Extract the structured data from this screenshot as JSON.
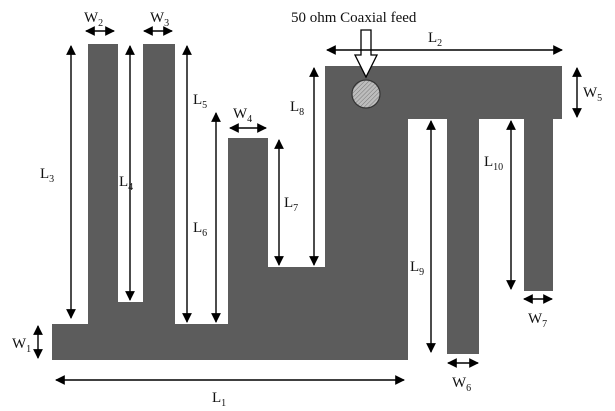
{
  "diagram": {
    "feed_label": "50 ohm Coaxial feed",
    "colors": {
      "antenna_fill": "#5c5c5c",
      "feed_fill": "#b5b5b5",
      "background": "#ffffff",
      "dimension_line": "#000000"
    },
    "dimensions": [
      {
        "id": "L1",
        "main": "L",
        "sub": "1"
      },
      {
        "id": "L2",
        "main": "L",
        "sub": "2"
      },
      {
        "id": "L3",
        "main": "L",
        "sub": "3"
      },
      {
        "id": "L4",
        "main": "L",
        "sub": "4"
      },
      {
        "id": "L5",
        "main": "L",
        "sub": "5"
      },
      {
        "id": "L6",
        "main": "L",
        "sub": "6"
      },
      {
        "id": "L7",
        "main": "L",
        "sub": "7"
      },
      {
        "id": "L8",
        "main": "L",
        "sub": "8"
      },
      {
        "id": "L9",
        "main": "L",
        "sub": "9"
      },
      {
        "id": "L10",
        "main": "L",
        "sub": "10"
      },
      {
        "id": "W1",
        "main": "W",
        "sub": "1"
      },
      {
        "id": "W2",
        "main": "W",
        "sub": "2"
      },
      {
        "id": "W3",
        "main": "W",
        "sub": "3"
      },
      {
        "id": "W4",
        "main": "W",
        "sub": "4"
      },
      {
        "id": "W5",
        "main": "W",
        "sub": "5"
      },
      {
        "id": "W6",
        "main": "W",
        "sub": "6"
      },
      {
        "id": "W7",
        "main": "W",
        "sub": "7"
      }
    ]
  }
}
